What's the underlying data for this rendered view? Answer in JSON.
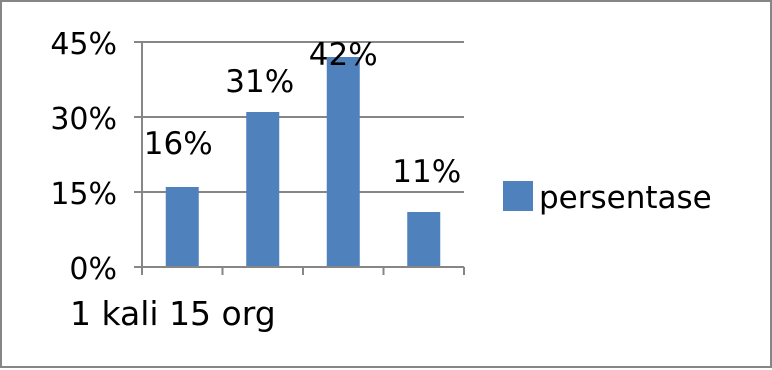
{
  "chart_data": {
    "type": "bar",
    "categories": [
      "1 kali 15 org",
      "",
      "",
      ""
    ],
    "series": [
      {
        "name": "persentase",
        "values": [
          16,
          31,
          42,
          11
        ],
        "color": "#4f81bd"
      }
    ],
    "data_labels": [
      "16%",
      "31%",
      "42%",
      "11%"
    ],
    "y_ticks": [
      {
        "value": 0,
        "label": "0%"
      },
      {
        "value": 15,
        "label": "15%"
      },
      {
        "value": 30,
        "label": "30%"
      },
      {
        "value": 45,
        "label": "45%"
      }
    ],
    "ylim": [
      0,
      45
    ],
    "grid": true,
    "grid_color": "#868686",
    "legend_placement": "right",
    "title": "",
    "xlabel": "",
    "ylabel": ""
  }
}
